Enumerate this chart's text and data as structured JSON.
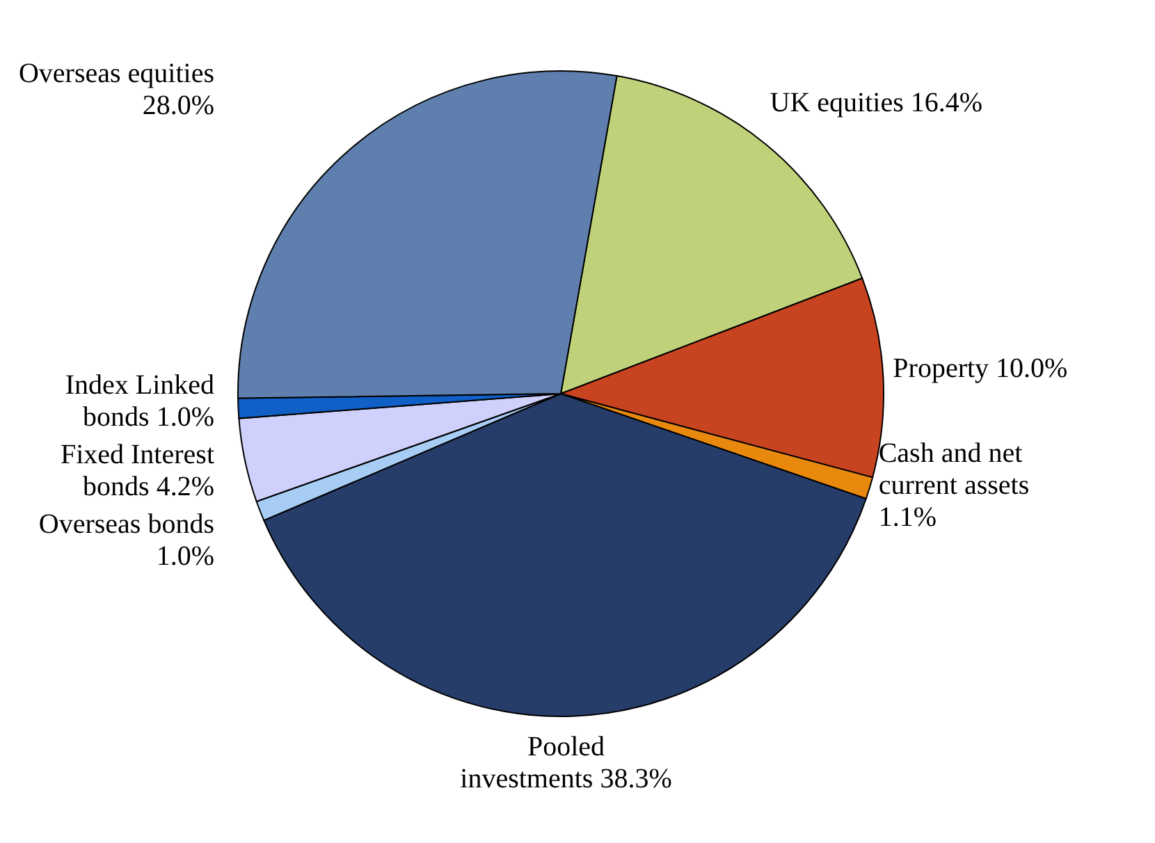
{
  "chart_data": {
    "type": "pie",
    "categories": [
      "UK equities",
      "Property",
      "Cash and net current assets",
      "Pooled investments",
      "Overseas bonds",
      "Fixed Interest bonds",
      "Index Linked bonds",
      "Overseas equities"
    ],
    "values": [
      16.4,
      10.0,
      1.1,
      38.3,
      1.0,
      4.2,
      1.0,
      28.0
    ],
    "value_labels": [
      "16.4%",
      "10.0%",
      "1.1%",
      "38.3%",
      "1.0%",
      "4.2%",
      "1.0%",
      "28.0%"
    ],
    "colors": [
      "#c0d279",
      "#c8431f",
      "#e8890d",
      "#263c69",
      "#a8cdf5",
      "#d0d0fc",
      "#1060c8",
      "#5f80ae"
    ]
  }
}
